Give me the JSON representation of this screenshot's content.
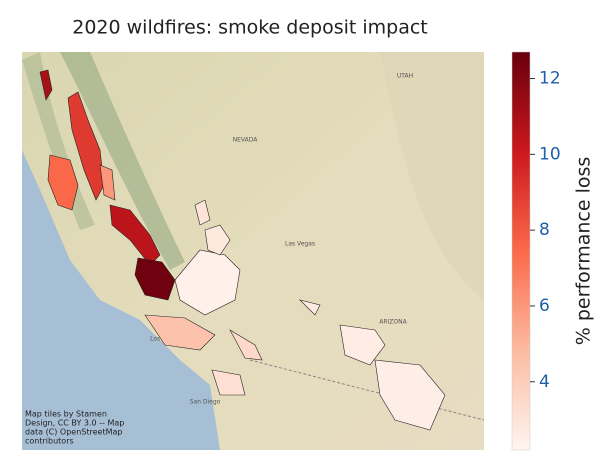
{
  "title": "2020 wildfires: smoke deposit impact",
  "map": {
    "labels": [
      "NEVADA",
      "UTAH",
      "ARIZONA",
      "Las Vegas",
      "Los Angeles",
      "San Diego"
    ],
    "attribution": [
      "Map tiles by Stamen",
      "Design, CC BY 3.0 -- Map",
      "data (C) OpenStreetMap",
      "contributors"
    ],
    "fire_values": [
      9.0,
      11.0,
      7.5,
      10.5,
      12.5,
      6.0,
      2.4,
      2.8,
      4.5,
      3.5,
      3.2,
      2.6,
      2.5,
      2.7,
      3.0
    ]
  },
  "colorbar": {
    "label": "% performance loss",
    "lim": [
      2.2,
      12.7
    ],
    "ticks": [
      4,
      6,
      8,
      10,
      12
    ],
    "colormap": [
      "#fff5f0",
      "#fcbba1",
      "#fb6a4a",
      "#cb181d",
      "#67000d"
    ]
  }
}
